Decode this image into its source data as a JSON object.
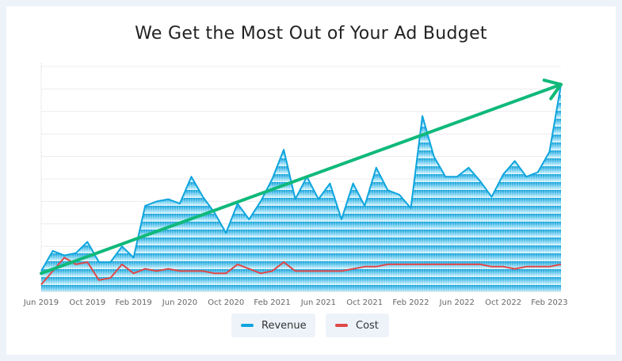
{
  "chart_data": {
    "type": "area",
    "title": "We Get the Most Out of Your Ad Budget",
    "xlabel": "",
    "ylabel": "",
    "x_start": "Jun 2019",
    "x_tick_labels": [
      "Jun 2019",
      "Oct 2019",
      "Feb 2019",
      "Jun 2020",
      "Oct 2020",
      "Feb 2021",
      "Jun 2021",
      "Oct 2021",
      "Feb 2022",
      "Jun 2022",
      "Oct 2022",
      "Feb 2023"
    ],
    "ylim": [
      0,
      100
    ],
    "y_tick_labels_shown": false,
    "grid": true,
    "legend_position": "bottom",
    "series": [
      {
        "name": "Revenue",
        "color": "#0ea5dd",
        "fill": true,
        "values": [
          9,
          18,
          16,
          17,
          22,
          13,
          13,
          20,
          15,
          38,
          40,
          41,
          39,
          51,
          42,
          35,
          26,
          39,
          32,
          40,
          50,
          63,
          41,
          51,
          41,
          48,
          32,
          48,
          38,
          55,
          45,
          43,
          37,
          78,
          60,
          51,
          51,
          55,
          49,
          42,
          52,
          58,
          51,
          53,
          62,
          92
        ]
      },
      {
        "name": "Cost",
        "color": "#e04848",
        "fill": false,
        "values": [
          3,
          9,
          15,
          12,
          13,
          5,
          6,
          12,
          8,
          10,
          9,
          10,
          9,
          9,
          9,
          8,
          8,
          12,
          10,
          8,
          9,
          13,
          9,
          9,
          9,
          9,
          9,
          10,
          11,
          11,
          12,
          12,
          12,
          12,
          12,
          12,
          12,
          12,
          12,
          11,
          11,
          10,
          11,
          11,
          11,
          12
        ]
      }
    ],
    "annotations": [
      {
        "type": "trend-arrow",
        "color": "#10b97a",
        "from": {
          "index": 0,
          "value": 8
        },
        "to": {
          "index": 45,
          "value": 92
        }
      }
    ]
  }
}
